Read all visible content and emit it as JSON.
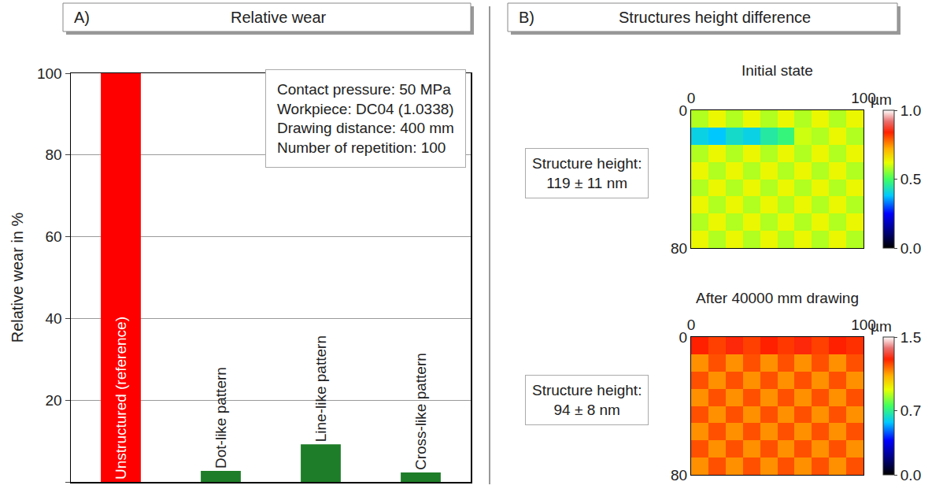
{
  "chart_data": [
    {
      "panel": "A)",
      "title": "Relative wear",
      "type": "bar",
      "ylabel": "Relative wear in %",
      "categories": [
        "Unstructured (reference)",
        "Dot-like pattern",
        "Line-like pattern",
        "Cross-like pattern"
      ],
      "values": [
        100,
        2.7,
        9.2,
        2.3
      ],
      "colors": [
        "#ff0000",
        "#1e7d28",
        "#1e7d28",
        "#1e7d28"
      ],
      "ylim": [
        0,
        100
      ],
      "yticks": [
        0,
        20,
        40,
        60,
        80,
        100
      ],
      "grid": true,
      "tick_labels": "y",
      "annotation": [
        "Contact pressure: 50 MPa",
        "Workpiece: DC04 (1.0338)",
        "Drawing distance: 400 mm",
        "Number of repetition: 100"
      ]
    },
    {
      "panel": "B)",
      "title": "Structures height difference",
      "type": "heatmap",
      "subtitle": "Initial state",
      "annotation": [
        "Structure height:",
        "119 ± 11 nm"
      ],
      "x_unit": "µm",
      "x": [
        5,
        15,
        25,
        35,
        45,
        55,
        65,
        75,
        85,
        95
      ],
      "y": [
        5,
        15,
        25,
        35,
        45,
        55,
        65,
        75
      ],
      "cells": [
        [
          0.58,
          0.63,
          0.58,
          0.63,
          0.58,
          0.63,
          0.58,
          0.63,
          0.58,
          0.63
        ],
        [
          0.4,
          0.38,
          0.42,
          0.4,
          0.45,
          0.48,
          0.6,
          0.58,
          0.63,
          0.58
        ],
        [
          0.58,
          0.63,
          0.58,
          0.63,
          0.58,
          0.63,
          0.58,
          0.63,
          0.58,
          0.63
        ],
        [
          0.63,
          0.58,
          0.63,
          0.58,
          0.63,
          0.58,
          0.63,
          0.58,
          0.63,
          0.58
        ],
        [
          0.58,
          0.63,
          0.58,
          0.63,
          0.58,
          0.63,
          0.58,
          0.63,
          0.58,
          0.63
        ],
        [
          0.63,
          0.58,
          0.63,
          0.58,
          0.63,
          0.58,
          0.63,
          0.58,
          0.63,
          0.58
        ],
        [
          0.58,
          0.63,
          0.58,
          0.63,
          0.58,
          0.63,
          0.58,
          0.63,
          0.58,
          0.63
        ],
        [
          0.63,
          0.58,
          0.63,
          0.58,
          0.63,
          0.58,
          0.63,
          0.58,
          0.63,
          0.58
        ]
      ],
      "xlim": [
        0,
        100
      ],
      "xticks": [
        0,
        100
      ],
      "ylim": [
        0,
        80
      ],
      "yticks": [
        0,
        80
      ],
      "colorbar_range": [
        0,
        1
      ],
      "colorbar_ticks": [
        {
          "value": 0,
          "label": "0.0"
        },
        {
          "value": 0.5,
          "label": "0.5"
        },
        {
          "value": 1,
          "label": "1.0"
        }
      ]
    },
    {
      "type": "heatmap",
      "subtitle": "After 40000 mm drawing",
      "annotation": [
        "Structure height:",
        "94 ± 8 nm"
      ],
      "x_unit": "µm",
      "x": [
        5,
        15,
        25,
        35,
        45,
        55,
        65,
        75,
        85,
        95
      ],
      "y": [
        5,
        15,
        25,
        35,
        45,
        55,
        65,
        75
      ],
      "cells": [
        [
          1.26,
          1.22,
          1.27,
          1.22,
          1.26,
          1.23,
          1.27,
          1.22,
          1.26,
          1.24
        ],
        [
          1.12,
          1.2,
          1.12,
          1.2,
          1.12,
          1.2,
          1.12,
          1.2,
          1.12,
          1.2
        ],
        [
          1.2,
          1.12,
          1.2,
          1.12,
          1.2,
          1.12,
          1.2,
          1.12,
          1.2,
          1.12
        ],
        [
          1.12,
          1.2,
          1.12,
          1.2,
          1.12,
          1.2,
          1.12,
          1.2,
          1.12,
          1.2
        ],
        [
          1.2,
          1.12,
          1.2,
          1.12,
          1.2,
          1.12,
          1.2,
          1.12,
          1.2,
          1.12
        ],
        [
          1.12,
          1.2,
          1.12,
          1.2,
          1.12,
          1.2,
          1.12,
          1.2,
          1.12,
          1.2
        ],
        [
          1.2,
          1.12,
          1.2,
          1.12,
          1.2,
          1.12,
          1.2,
          1.12,
          1.2,
          1.12
        ],
        [
          1.12,
          1.2,
          1.12,
          1.2,
          1.12,
          1.2,
          1.12,
          1.2,
          1.12,
          1.2
        ]
      ],
      "xlim": [
        0,
        100
      ],
      "xticks": [
        0,
        100
      ],
      "ylim": [
        0,
        80
      ],
      "yticks": [
        0,
        80
      ],
      "colorbar_range": [
        0,
        1.5
      ],
      "colorbar_ticks": [
        {
          "value": 0,
          "label": "0.0"
        },
        {
          "value": 0.7,
          "label": "0.7"
        },
        {
          "value": 1.5,
          "label": "1.5"
        }
      ]
    }
  ]
}
